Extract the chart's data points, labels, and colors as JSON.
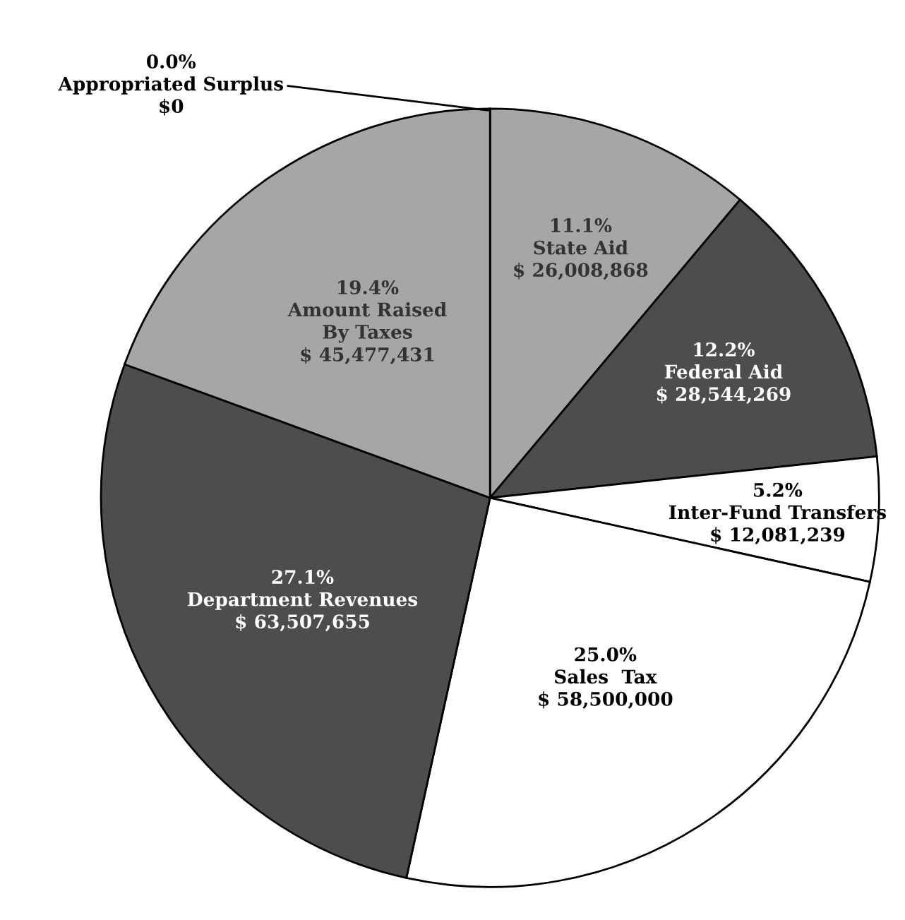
{
  "chart_data": {
    "type": "pie",
    "categories": [
      "Appropriated Surplus",
      "State Aid",
      "Federal Aid",
      "Inter-Fund Transfers",
      "Sales  Tax",
      "Department Revenues",
      "Amount Raised\nBy Taxes"
    ],
    "values": [
      0,
      26008868,
      28544269,
      12081239,
      58500000,
      63507655,
      45477431
    ],
    "colors": [
      "#a6a6a6",
      "#a6a6a6",
      "#4d4d4d",
      "#ffffff",
      "#ffffff",
      "#4d4d4d",
      "#a6a6a6"
    ],
    "value_labels": [
      "$0",
      "$ 26,008,868",
      "$ 28,544,269",
      "$ 12,081,239",
      "$ 58,500,000",
      "$ 63,507,655",
      "$ 45,477,431"
    ],
    "annotations": [
      "0.0%",
      "11.1%",
      "12.2%",
      "5.2%",
      "25.0%",
      "27.1%",
      "19.4%"
    ]
  }
}
